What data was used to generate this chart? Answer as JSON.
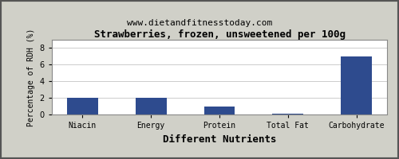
{
  "title": "Strawberries, frozen, unsweetened per 100g",
  "subtitle": "www.dietandfitnesstoday.com",
  "xlabel": "Different Nutrients",
  "ylabel": "Percentage of RDH (%)",
  "categories": [
    "Niacin",
    "Energy",
    "Protein",
    "Total Fat",
    "Carbohydrate"
  ],
  "values": [
    2.0,
    2.0,
    1.0,
    0.1,
    7.0
  ],
  "bar_color": "#2e4b8e",
  "ylim": [
    0,
    9
  ],
  "yticks": [
    0,
    2,
    4,
    6,
    8
  ],
  "bg_color": "#ffffff",
  "outer_bg": "#d0d0c8",
  "border_color": "#555555",
  "title_fontsize": 9,
  "subtitle_fontsize": 8,
  "xlabel_fontsize": 9,
  "ylabel_fontsize": 7,
  "tick_fontsize": 7,
  "bar_width": 0.45
}
